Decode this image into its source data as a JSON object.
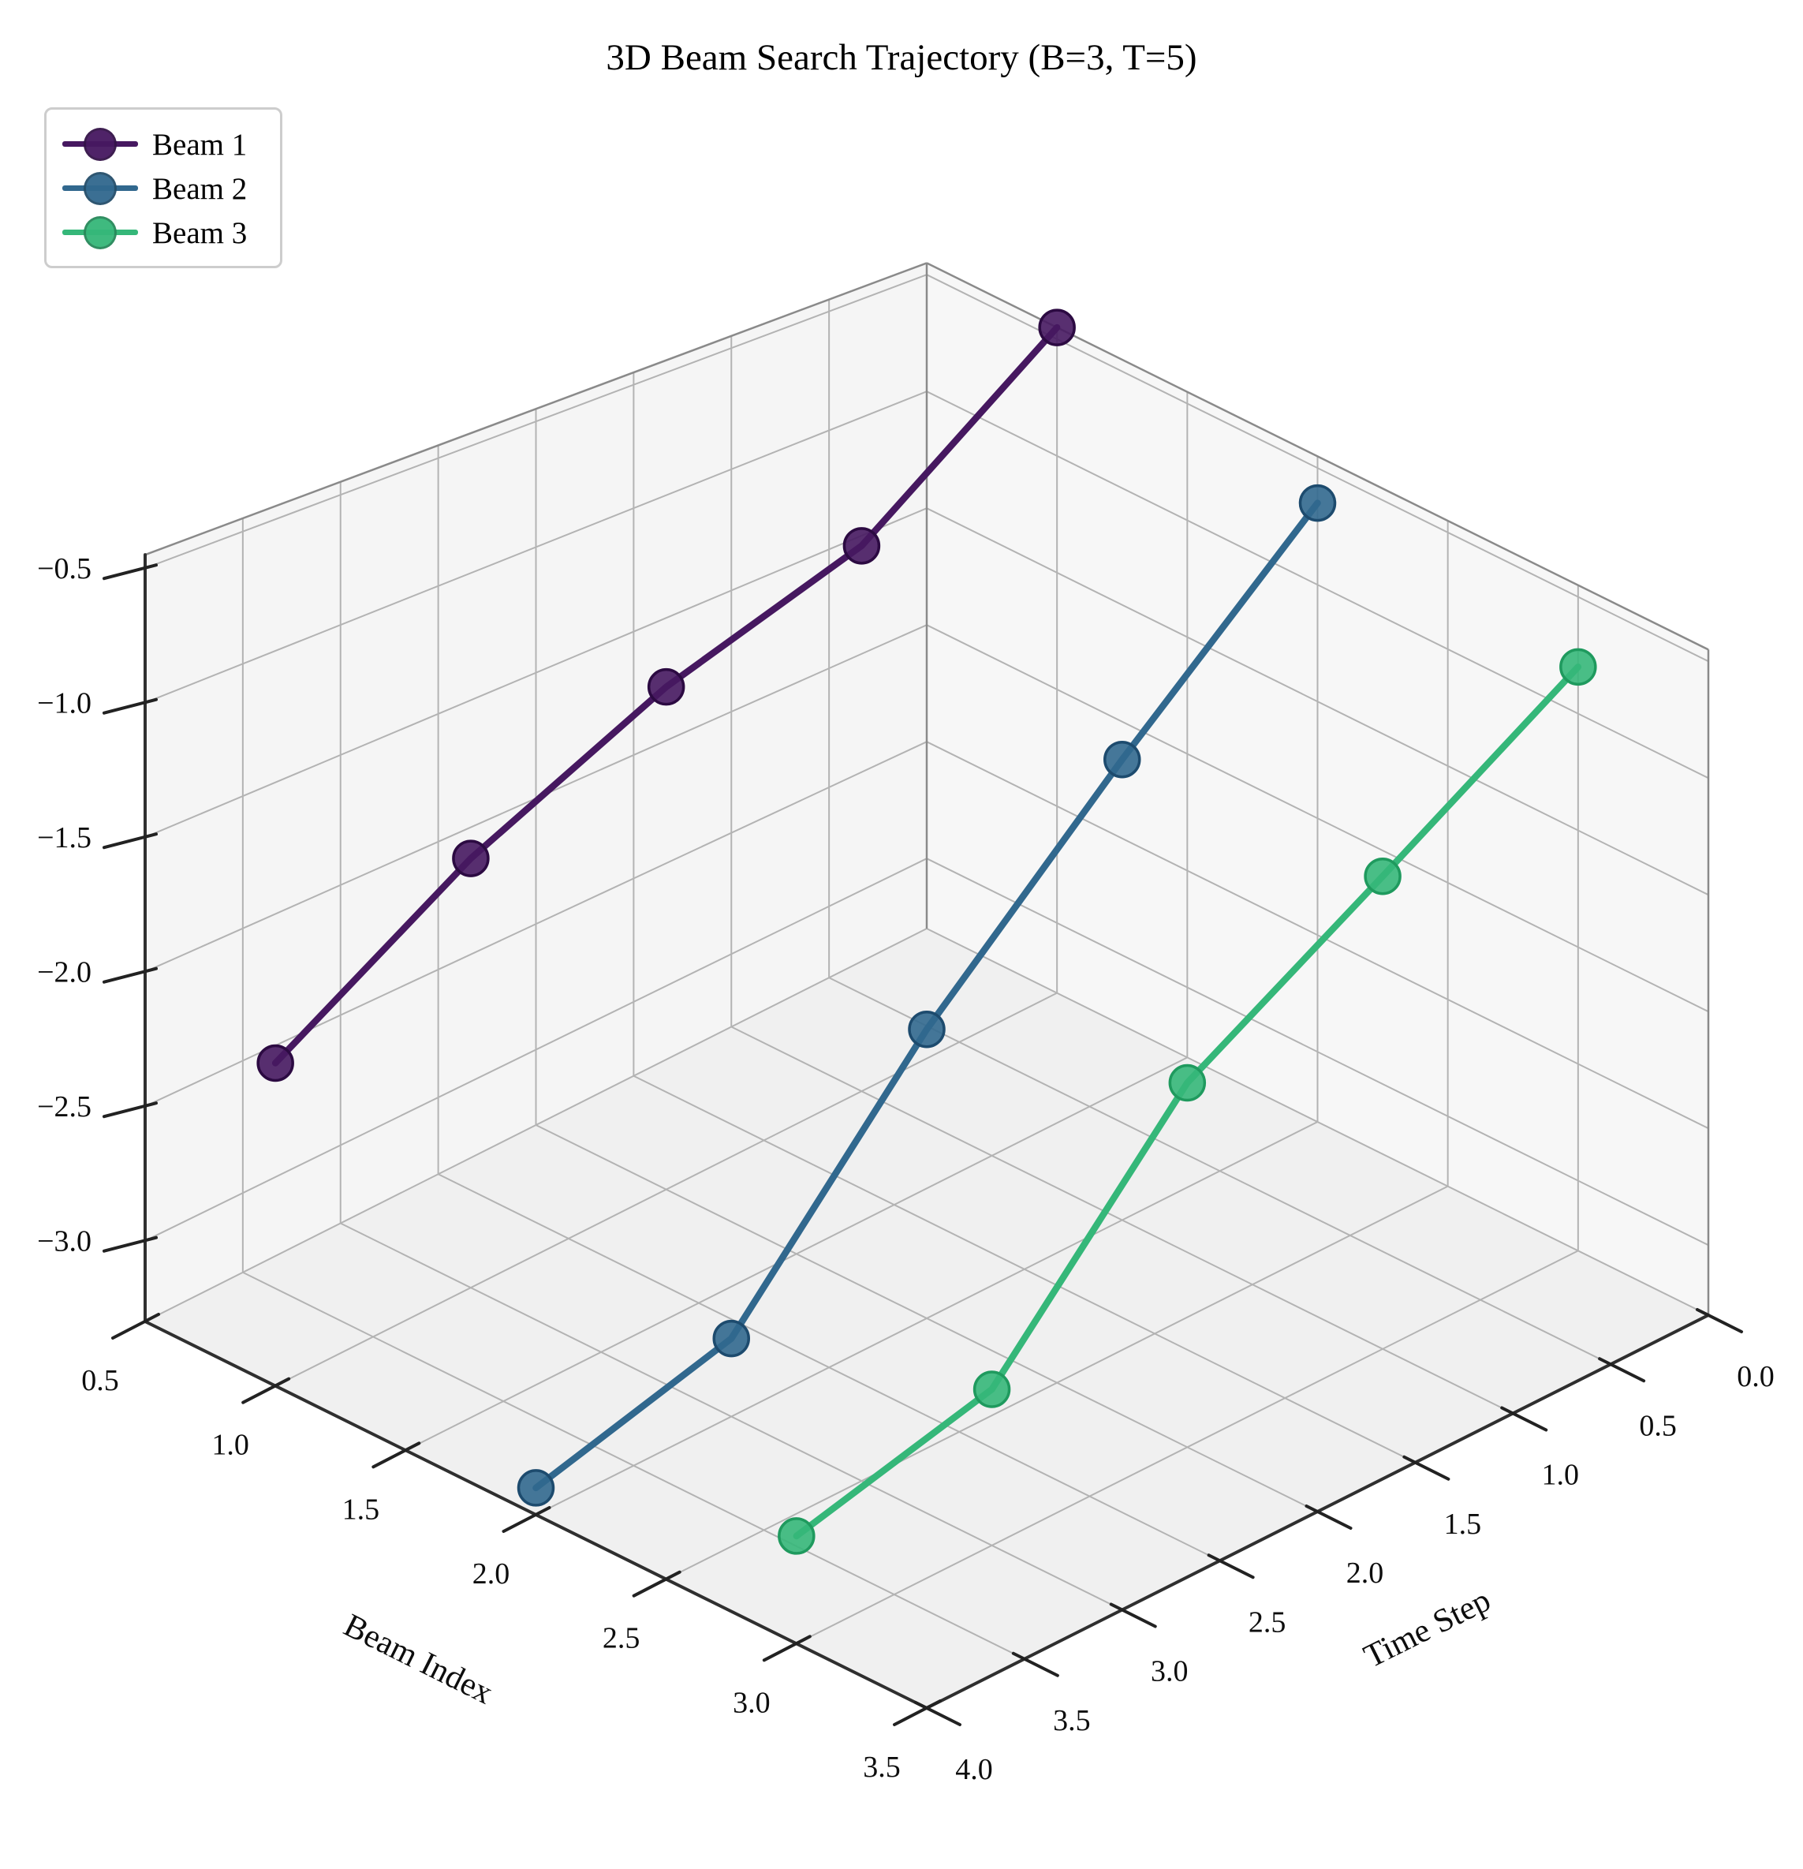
{
  "title": "3D Beam Search Trajectory (B=3, T=5)",
  "legend": {
    "position": "upper-left"
  },
  "chart_data": {
    "type": "line",
    "projection": "3d",
    "title": "3D Beam Search Trajectory (B=3, T=5)",
    "xlabel": "Beam Index",
    "ylabel": "Time Step",
    "zlabel": "",
    "xlim": [
      0.5,
      3.5
    ],
    "ylim": [
      0.0,
      4.0
    ],
    "zlim": [
      -3.3,
      -0.45
    ],
    "x_ticks": [
      0.5,
      1.0,
      1.5,
      2.0,
      2.5,
      3.0,
      3.5
    ],
    "y_ticks": [
      0.0,
      0.5,
      1.0,
      1.5,
      2.0,
      2.5,
      3.0,
      3.5,
      4.0
    ],
    "z_ticks": [
      -0.5,
      -1.0,
      -1.5,
      -2.0,
      -2.5,
      -3.0
    ],
    "time_steps": [
      0,
      1,
      2,
      3,
      4
    ],
    "grid": true,
    "legend_entries": [
      "Beam 1",
      "Beam 2",
      "Beam 3"
    ],
    "series": [
      {
        "name": "Beam 1",
        "beam_index": 1,
        "color": "#461860",
        "edge_color": "#2c0a42",
        "log_probs": [
          -0.45,
          -1.05,
          -1.3,
          -1.65,
          -2.1
        ]
      },
      {
        "name": "Beam 2",
        "beam_index": 2,
        "color": "#31688e",
        "edge_color": "#1d4b6e",
        "log_probs": [
          -0.65,
          -1.4,
          -2.15,
          -3.0,
          -3.2
        ]
      },
      {
        "name": "Beam 3",
        "beam_index": 3,
        "color": "#35b779",
        "edge_color": "#1f9a5e",
        "log_probs": [
          -0.8,
          -1.35,
          -1.85,
          -2.7,
          -2.9
        ]
      }
    ],
    "style": {
      "floor_color": "#f0f0f0",
      "left_wall_color": "#f5f5f5",
      "right_wall_color": "#f7f7f7",
      "grid_color": "#b3b3b3",
      "pane_edge_color": "#8a8a8a",
      "spine_color": "#2f2f2f"
    }
  }
}
